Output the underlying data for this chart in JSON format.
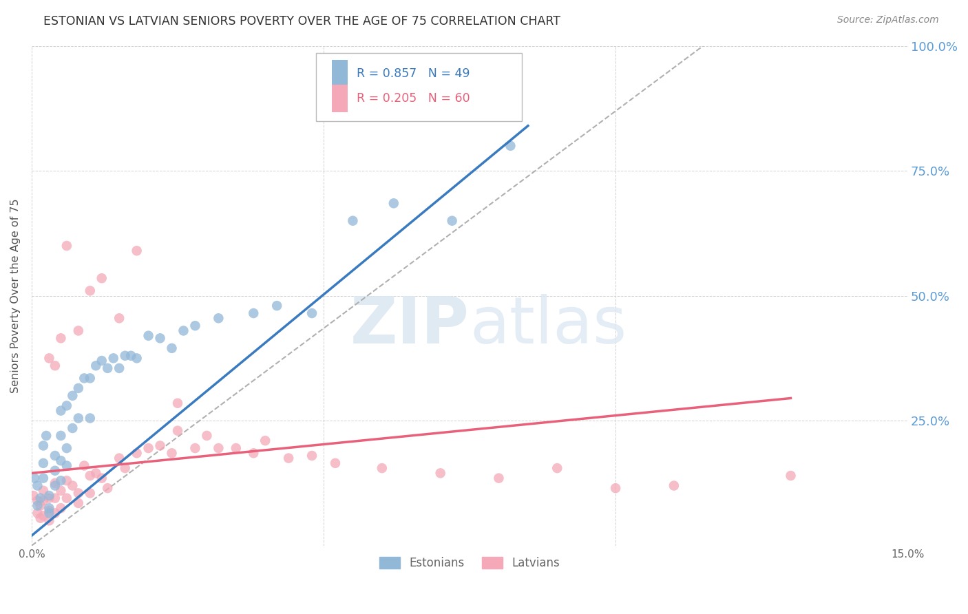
{
  "title": "ESTONIAN VS LATVIAN SENIORS POVERTY OVER THE AGE OF 75 CORRELATION CHART",
  "source": "Source: ZipAtlas.com",
  "ylabel": "Seniors Poverty Over the Age of 75",
  "xlim": [
    0.0,
    0.15
  ],
  "ylim": [
    0.0,
    1.0
  ],
  "ytick_labels_right": [
    "",
    "25.0%",
    "50.0%",
    "75.0%",
    "100.0%"
  ],
  "ytick_vals": [
    0.0,
    0.25,
    0.5,
    0.75,
    1.0
  ],
  "right_ytick_color": "#5b9bd5",
  "legend_R_blue": "R = 0.857",
  "legend_N_blue": "N = 49",
  "legend_R_pink": "R = 0.205",
  "legend_N_pink": "N = 60",
  "blue_color": "#92b8d8",
  "pink_color": "#f4a8b8",
  "line_blue": "#3a7abf",
  "line_pink": "#e8607a",
  "line_diag_color": "#b0b0b0",
  "estonians_label": "Estonians",
  "latvians_label": "Latvians",
  "blue_scatter_x": [
    0.0005,
    0.001,
    0.001,
    0.0015,
    0.002,
    0.002,
    0.002,
    0.0025,
    0.003,
    0.003,
    0.003,
    0.004,
    0.004,
    0.004,
    0.005,
    0.005,
    0.005,
    0.005,
    0.006,
    0.006,
    0.006,
    0.007,
    0.007,
    0.008,
    0.008,
    0.009,
    0.01,
    0.01,
    0.011,
    0.012,
    0.013,
    0.014,
    0.015,
    0.016,
    0.017,
    0.018,
    0.02,
    0.022,
    0.024,
    0.026,
    0.028,
    0.032,
    0.038,
    0.042,
    0.048,
    0.055,
    0.062,
    0.072,
    0.082
  ],
  "blue_scatter_y": [
    0.135,
    0.12,
    0.08,
    0.095,
    0.2,
    0.165,
    0.135,
    0.22,
    0.1,
    0.075,
    0.065,
    0.18,
    0.15,
    0.12,
    0.27,
    0.22,
    0.17,
    0.13,
    0.28,
    0.195,
    0.16,
    0.3,
    0.235,
    0.315,
    0.255,
    0.335,
    0.335,
    0.255,
    0.36,
    0.37,
    0.355,
    0.375,
    0.355,
    0.38,
    0.38,
    0.375,
    0.42,
    0.415,
    0.395,
    0.43,
    0.44,
    0.455,
    0.465,
    0.48,
    0.465,
    0.65,
    0.685,
    0.65,
    0.8
  ],
  "pink_scatter_x": [
    0.0003,
    0.001,
    0.001,
    0.0015,
    0.0015,
    0.002,
    0.002,
    0.002,
    0.003,
    0.003,
    0.003,
    0.004,
    0.004,
    0.004,
    0.005,
    0.005,
    0.006,
    0.006,
    0.007,
    0.008,
    0.008,
    0.009,
    0.01,
    0.01,
    0.011,
    0.012,
    0.013,
    0.015,
    0.016,
    0.018,
    0.02,
    0.022,
    0.024,
    0.025,
    0.028,
    0.03,
    0.032,
    0.035,
    0.038,
    0.04,
    0.044,
    0.048,
    0.052,
    0.06,
    0.07,
    0.08,
    0.09,
    0.1,
    0.11,
    0.13,
    0.003,
    0.004,
    0.005,
    0.006,
    0.008,
    0.01,
    0.012,
    0.015,
    0.018,
    0.025
  ],
  "pink_scatter_y": [
    0.1,
    0.09,
    0.065,
    0.08,
    0.055,
    0.11,
    0.09,
    0.06,
    0.095,
    0.07,
    0.05,
    0.125,
    0.095,
    0.065,
    0.11,
    0.075,
    0.13,
    0.095,
    0.12,
    0.105,
    0.085,
    0.16,
    0.14,
    0.105,
    0.145,
    0.135,
    0.115,
    0.175,
    0.155,
    0.185,
    0.195,
    0.2,
    0.185,
    0.23,
    0.195,
    0.22,
    0.195,
    0.195,
    0.185,
    0.21,
    0.175,
    0.18,
    0.165,
    0.155,
    0.145,
    0.135,
    0.155,
    0.115,
    0.12,
    0.14,
    0.375,
    0.36,
    0.415,
    0.6,
    0.43,
    0.51,
    0.535,
    0.455,
    0.59,
    0.285
  ],
  "blue_line_x": [
    0.0,
    0.085
  ],
  "blue_line_y": [
    0.02,
    0.84
  ],
  "pink_line_x": [
    0.0,
    0.13
  ],
  "pink_line_y": [
    0.145,
    0.295
  ],
  "diag_line_x": [
    0.0,
    0.115
  ],
  "diag_line_y": [
    0.0,
    1.0
  ]
}
